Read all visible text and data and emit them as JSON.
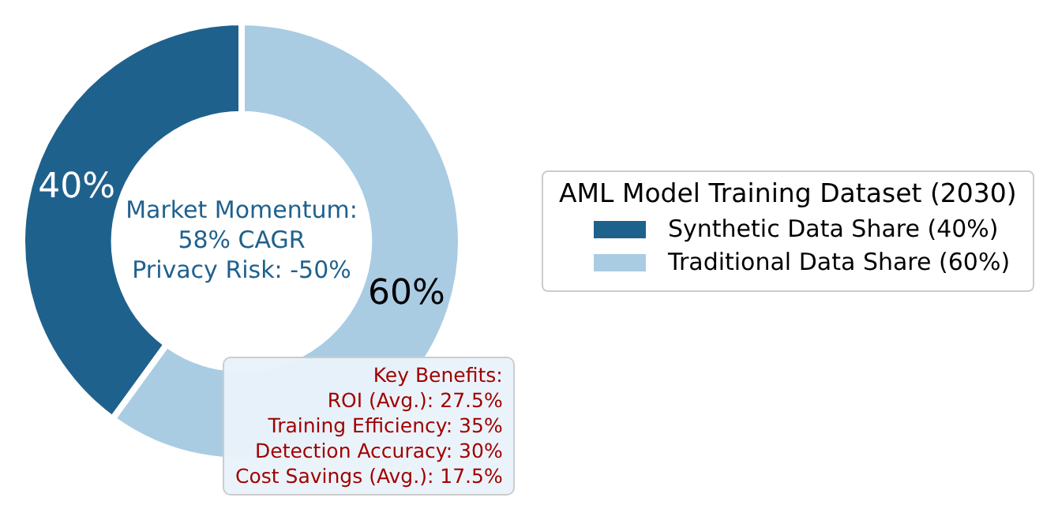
{
  "chart_data": {
    "type": "donut",
    "legend_title": "AML Model Training Dataset (2030)",
    "legend": "right",
    "categories": [
      "Synthetic Data Share (40%)",
      "Traditional Data Share (60%)"
    ],
    "values": [
      40,
      60
    ],
    "colors": [
      "#1f618d",
      "#a9cce3"
    ],
    "value_labels": [
      "40%",
      "60%"
    ],
    "annotations": [
      "Market Momentum:\n58% CAGR\nPrivacy Risk: -50%",
      "Key Benefits:\nROI (Avg.): 27.5%\nTraining Efficiency: 35%\nDetection Accuracy: 30%\nCost Savings (Avg.): 17.5%"
    ]
  }
}
